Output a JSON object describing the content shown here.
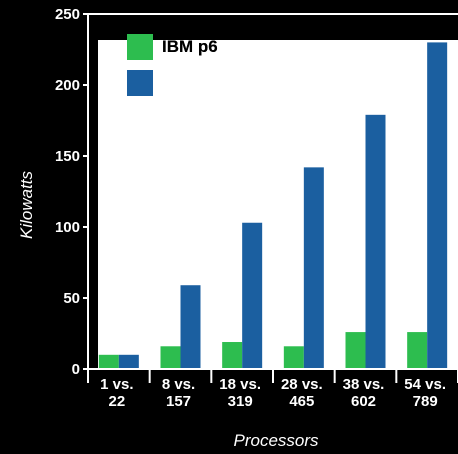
{
  "chart_data": {
    "type": "bar",
    "xlabel": "Processors",
    "ylabel": "Kilowatts",
    "ylim": [
      0,
      250
    ],
    "yticks": [
      0,
      50,
      100,
      150,
      200,
      250
    ],
    "categories": [
      [
        "1 vs.",
        "22"
      ],
      [
        "8 vs.",
        "157"
      ],
      [
        "18 vs.",
        "319"
      ],
      [
        "28 vs.",
        "465"
      ],
      [
        "38 vs.",
        "602"
      ],
      [
        "54 vs.",
        "789"
      ]
    ],
    "series": [
      {
        "name": "IBM p6",
        "color": "#2dbd4f",
        "values": [
          10,
          16,
          19,
          16,
          26,
          26
        ]
      },
      {
        "name": "",
        "color": "#1b5fa0",
        "values": [
          10,
          59,
          103,
          142,
          179,
          230
        ]
      }
    ],
    "legend": "top-left",
    "grid": false
  }
}
